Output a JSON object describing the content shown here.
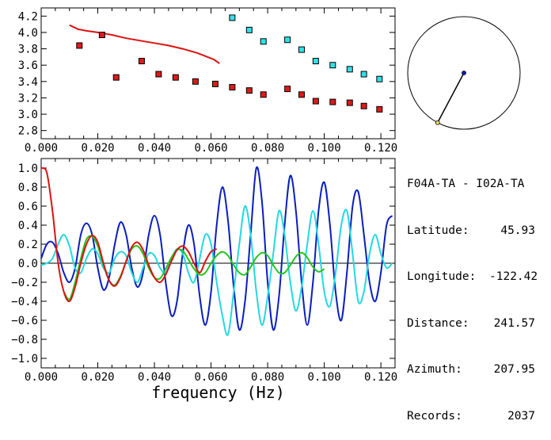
{
  "station_pair": "F04A-TA - I02A-TA",
  "info": [
    {
      "label": "Latitude:",
      "value": "45.93"
    },
    {
      "label": "Longitude:",
      "value": "-122.42"
    },
    {
      "label": "Distance:",
      "value": "241.57"
    },
    {
      "label": "Azimuth:",
      "value": "207.95"
    },
    {
      "label": "Records:",
      "value": "2037"
    }
  ],
  "azimuth_deg": 207.95,
  "colors": {
    "red": "#dd1111",
    "blue": "#0a1ebe",
    "cyan": "#22d8e0",
    "green": "#22c41a",
    "square_red": "#dd1a1a",
    "square_cyan": "#33e0e8"
  },
  "chart_data": [
    {
      "type": "scatter",
      "xlim": [
        0.0,
        0.125
      ],
      "ylim": [
        2.7,
        4.3
      ],
      "xticks": [
        "0.000",
        "0.020",
        "0.040",
        "0.060",
        "0.080",
        "0.100",
        "0.120"
      ],
      "yticks": [
        "2.8",
        "3.0",
        "3.2",
        "3.4",
        "3.6",
        "3.8",
        "4.0",
        "4.2"
      ],
      "series": [
        {
          "color": "red",
          "kind": "line",
          "x": [
            0.01,
            0.013,
            0.016,
            0.02,
            0.025,
            0.03,
            0.035,
            0.04,
            0.045,
            0.05,
            0.055,
            0.058,
            0.061,
            0.063
          ],
          "y": [
            4.09,
            4.04,
            4.02,
            4.0,
            3.97,
            3.93,
            3.9,
            3.87,
            3.84,
            3.8,
            3.75,
            3.71,
            3.67,
            3.62
          ]
        },
        {
          "color": "square_red",
          "kind": "markers",
          "x": [
            0.0135,
            0.0215,
            0.0265,
            0.0355,
            0.0415,
            0.0475,
            0.0545,
            0.0615,
            0.0675,
            0.0735,
            0.0785,
            0.087,
            0.092,
            0.097,
            0.103,
            0.109,
            0.114,
            0.1195
          ],
          "y": [
            3.84,
            3.97,
            3.45,
            3.65,
            3.49,
            3.45,
            3.4,
            3.37,
            3.33,
            3.29,
            3.24,
            3.31,
            3.24,
            3.16,
            3.15,
            3.14,
            3.1,
            3.06
          ]
        },
        {
          "color": "square_cyan",
          "kind": "markers",
          "x": [
            0.0675,
            0.0735,
            0.0785,
            0.087,
            0.092,
            0.097,
            0.103,
            0.109,
            0.114,
            0.1195
          ],
          "y": [
            4.18,
            4.03,
            3.89,
            3.91,
            3.79,
            3.65,
            3.6,
            3.55,
            3.49,
            3.43
          ]
        }
      ]
    },
    {
      "type": "line",
      "xlabel": "frequency (Hz)",
      "xlim": [
        0.0,
        0.125
      ],
      "ylim": [
        -1.1,
        1.1
      ],
      "xticks": [
        "0.000",
        "0.020",
        "0.040",
        "0.060",
        "0.080",
        "0.100",
        "0.120"
      ],
      "yticks": [
        "-1.0",
        "-0.8",
        "-0.6",
        "-0.4",
        "-0.2",
        "0.0",
        "0.2",
        "0.4",
        "0.6",
        "0.8",
        "1.0"
      ],
      "series": [
        {
          "color": "red",
          "x": [
            0.0,
            0.002,
            0.004,
            0.006,
            0.008,
            0.01,
            0.012,
            0.014,
            0.016,
            0.018,
            0.02,
            0.022,
            0.024,
            0.026,
            0.028,
            0.03,
            0.032,
            0.034,
            0.036,
            0.038,
            0.04,
            0.042,
            0.044,
            0.046,
            0.048,
            0.05,
            0.052,
            0.054,
            0.056,
            0.058,
            0.06,
            0.062
          ],
          "y": [
            1.0,
            0.95,
            0.55,
            0.0,
            -0.3,
            -0.4,
            -0.25,
            0.0,
            0.2,
            0.29,
            0.22,
            0.0,
            -0.18,
            -0.24,
            -0.15,
            0.02,
            0.17,
            0.22,
            0.14,
            -0.02,
            -0.15,
            -0.2,
            -0.12,
            0.02,
            0.14,
            0.18,
            0.12,
            0.0,
            -0.1,
            0.02,
            0.12,
            0.15
          ]
        },
        {
          "color": "green",
          "x": [
            0.008,
            0.01,
            0.012,
            0.014,
            0.016,
            0.018,
            0.02,
            0.022,
            0.024,
            0.026,
            0.028,
            0.03,
            0.032,
            0.034,
            0.036,
            0.038,
            0.04,
            0.042,
            0.044,
            0.046,
            0.048,
            0.05,
            0.052,
            0.054,
            0.056,
            0.058,
            0.06,
            0.062,
            0.064,
            0.066,
            0.068,
            0.07,
            0.072,
            0.074,
            0.076,
            0.078,
            0.08,
            0.082,
            0.084,
            0.086,
            0.088,
            0.09,
            0.092,
            0.094,
            0.096,
            0.098,
            0.1
          ],
          "y": [
            -0.3,
            -0.38,
            -0.2,
            0.05,
            0.25,
            0.28,
            0.18,
            -0.02,
            -0.18,
            -0.23,
            -0.14,
            0.02,
            0.15,
            0.18,
            0.1,
            -0.05,
            -0.15,
            -0.16,
            -0.06,
            0.06,
            0.14,
            0.13,
            0.04,
            -0.06,
            -0.12,
            -0.1,
            0.0,
            0.08,
            0.12,
            0.08,
            -0.02,
            -0.1,
            -0.12,
            -0.04,
            0.06,
            0.11,
            0.08,
            -0.02,
            -0.1,
            -0.1,
            -0.02,
            0.07,
            0.11,
            0.06,
            -0.04,
            -0.09,
            -0.06
          ]
        },
        {
          "color": "blue",
          "x": [
            0.0,
            0.002,
            0.004,
            0.006,
            0.008,
            0.01,
            0.012,
            0.014,
            0.016,
            0.018,
            0.02,
            0.022,
            0.024,
            0.026,
            0.028,
            0.03,
            0.032,
            0.034,
            0.036,
            0.038,
            0.04,
            0.042,
            0.044,
            0.046,
            0.048,
            0.05,
            0.052,
            0.054,
            0.056,
            0.058,
            0.06,
            0.062,
            0.064,
            0.066,
            0.068,
            0.07,
            0.072,
            0.074,
            0.076,
            0.078,
            0.08,
            0.082,
            0.084,
            0.086,
            0.088,
            0.09,
            0.092,
            0.094,
            0.096,
            0.098,
            0.1,
            0.102,
            0.104,
            0.106,
            0.108,
            0.11,
            0.112,
            0.114,
            0.116,
            0.118,
            0.12,
            0.122,
            0.124
          ],
          "y": [
            0.05,
            0.2,
            0.22,
            0.1,
            -0.1,
            -0.2,
            -0.05,
            0.3,
            0.42,
            0.3,
            -0.05,
            -0.28,
            -0.15,
            0.2,
            0.43,
            0.3,
            -0.05,
            -0.25,
            -0.1,
            0.3,
            0.5,
            0.3,
            -0.2,
            -0.55,
            -0.4,
            0.1,
            0.4,
            0.2,
            -0.35,
            -0.65,
            -0.3,
            0.4,
            0.8,
            0.45,
            -0.25,
            -0.7,
            -0.4,
            0.3,
            1.0,
            0.65,
            -0.2,
            -0.7,
            -0.35,
            0.4,
            0.92,
            0.55,
            -0.2,
            -0.65,
            -0.2,
            0.55,
            0.85,
            0.4,
            -0.3,
            -0.6,
            -0.1,
            0.6,
            0.75,
            0.3,
            -0.2,
            -0.4,
            -0.1,
            0.4,
            0.5
          ]
        },
        {
          "color": "cyan",
          "x": [
            0.0,
            0.002,
            0.004,
            0.006,
            0.008,
            0.01,
            0.012,
            0.014,
            0.016,
            0.018,
            0.02,
            0.022,
            0.024,
            0.026,
            0.028,
            0.03,
            0.032,
            0.034,
            0.036,
            0.038,
            0.04,
            0.042,
            0.044,
            0.046,
            0.048,
            0.05,
            0.052,
            0.054,
            0.056,
            0.058,
            0.06,
            0.062,
            0.064,
            0.066,
            0.068,
            0.07,
            0.072,
            0.074,
            0.076,
            0.078,
            0.08,
            0.082,
            0.084,
            0.086,
            0.088,
            0.09,
            0.092,
            0.094,
            0.096,
            0.098,
            0.1,
            0.102,
            0.104,
            0.106,
            0.108,
            0.11,
            0.112,
            0.114,
            0.116,
            0.118,
            0.12,
            0.122,
            0.124
          ],
          "y": [
            -0.02,
            0.0,
            0.05,
            0.2,
            0.3,
            0.18,
            -0.05,
            -0.1,
            0.05,
            0.15,
            0.1,
            -0.05,
            -0.1,
            0.05,
            0.12,
            0.08,
            -0.1,
            -0.2,
            -0.05,
            0.1,
            0.08,
            -0.05,
            -0.1,
            0.05,
            0.15,
            0.1,
            -0.1,
            -0.2,
            0.05,
            0.3,
            0.2,
            -0.2,
            -0.55,
            -0.75,
            -0.3,
            0.2,
            0.6,
            0.3,
            -0.3,
            -0.65,
            -0.35,
            0.1,
            0.55,
            0.3,
            -0.2,
            -0.5,
            -0.25,
            0.2,
            0.55,
            0.2,
            -0.3,
            -0.45,
            -0.1,
            0.4,
            0.55,
            0.1,
            -0.4,
            -0.3,
            0.1,
            0.3,
            0.1,
            -0.05,
            0.0
          ]
        }
      ]
    }
  ]
}
